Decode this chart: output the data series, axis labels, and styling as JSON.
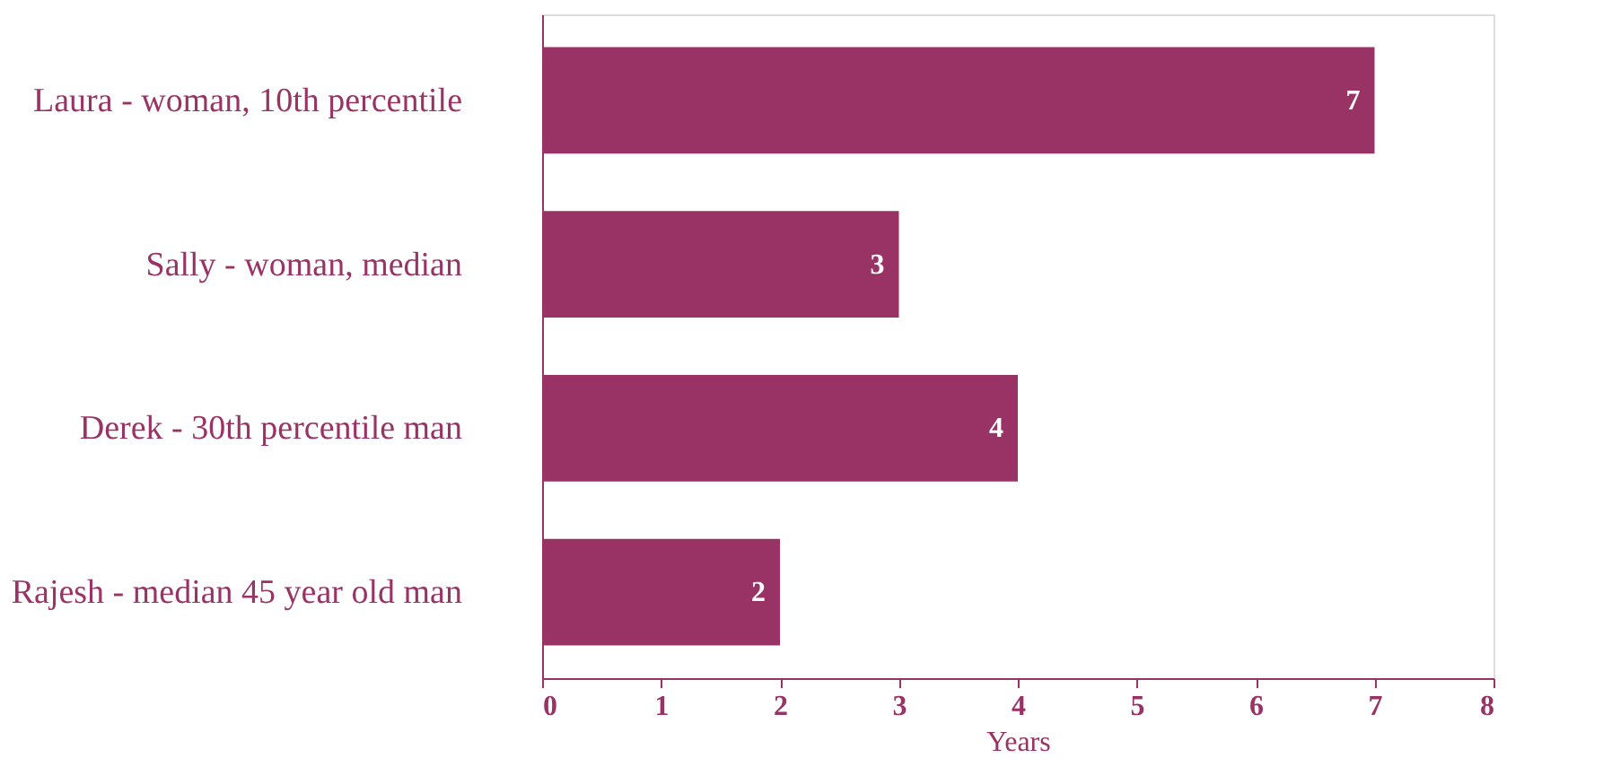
{
  "chart_data": {
    "type": "bar",
    "orientation": "horizontal",
    "xlabel": "Years",
    "categories": [
      "Laura - woman, 10th percentile",
      "Sally - woman, median",
      "Derek - 30th percentile man",
      "Rajesh - median 45 year old man"
    ],
    "values": [
      7,
      3,
      4,
      2
    ],
    "color": "#993366",
    "xlim": [
      0,
      8
    ],
    "xticks": [
      0,
      1,
      2,
      3,
      4,
      5,
      6,
      7,
      8
    ],
    "grid": false,
    "data_labels": true
  }
}
